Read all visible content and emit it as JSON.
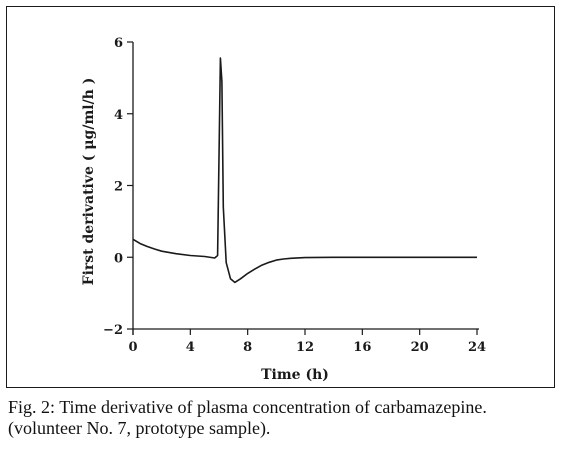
{
  "caption": {
    "main": "Fig. 2: Time derivative of plasma concentration of carbamazepine.",
    "sub": "(volunteer No. 7, prototype sample)."
  },
  "chart_data": {
    "type": "line",
    "title": "",
    "xlabel": "Time (h)",
    "ylabel": "First derivative ( μg/ml/h )",
    "xlim": [
      0,
      24
    ],
    "ylim": [
      -2,
      6
    ],
    "x_ticks": [
      0,
      4,
      8,
      12,
      16,
      20,
      24
    ],
    "y_ticks": [
      -2,
      0,
      2,
      4,
      6
    ],
    "grid": false,
    "legend": "none",
    "line_color": "#1a1a1a",
    "series": [
      {
        "x": [
          0,
          0.5,
          1,
          1.5,
          2,
          3,
          4,
          5,
          5.7,
          5.9,
          6.1,
          6.2,
          6.3,
          6.5,
          6.8,
          7.1,
          7.5,
          8,
          8.5,
          9,
          9.5,
          10,
          10.5,
          11,
          12,
          14,
          16,
          18,
          20,
          22,
          24
        ],
        "y": [
          0.5,
          0.38,
          0.3,
          0.23,
          0.17,
          0.1,
          0.05,
          0.02,
          -0.02,
          0.05,
          5.55,
          4.9,
          1.4,
          -0.15,
          -0.6,
          -0.7,
          -0.6,
          -0.45,
          -0.33,
          -0.22,
          -0.14,
          -0.08,
          -0.05,
          -0.03,
          -0.01,
          0,
          0,
          0,
          0,
          0,
          0
        ]
      }
    ]
  }
}
